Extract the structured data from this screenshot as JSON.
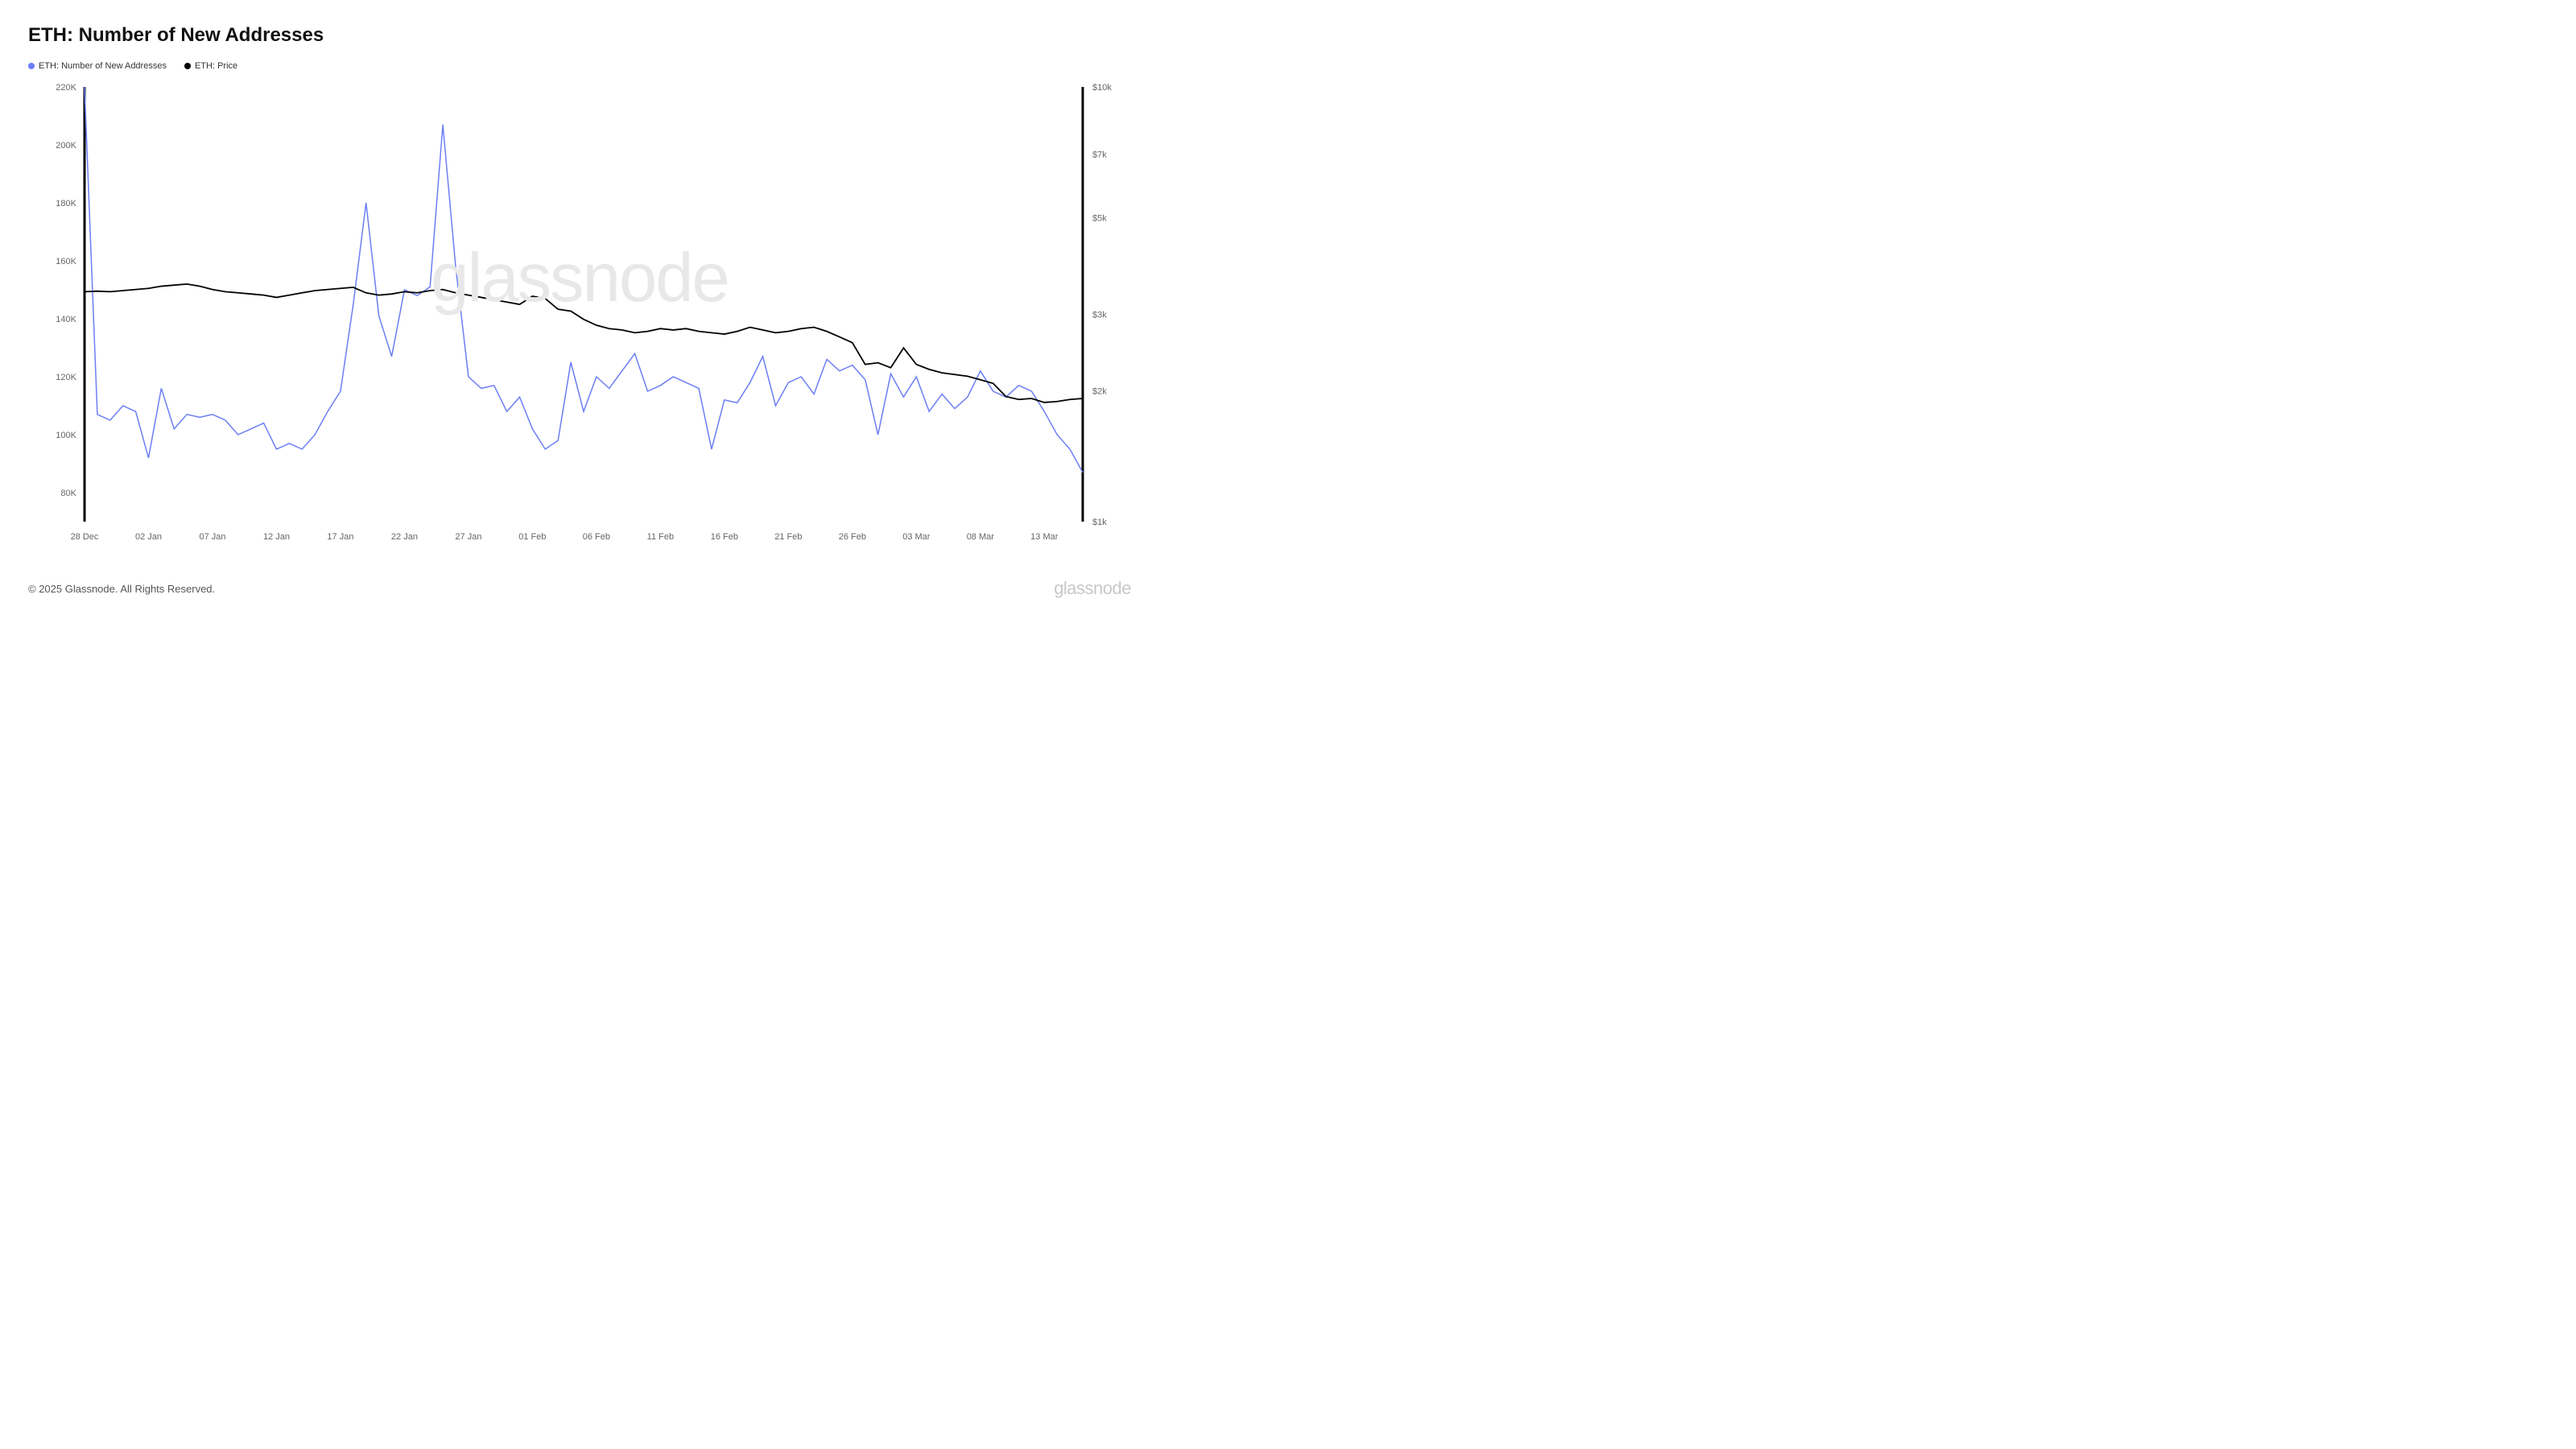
{
  "title": "ETH: Number of New Addresses",
  "legend": {
    "series1": {
      "label": "ETH: Number of New Addresses",
      "color": "#6b7ef5"
    },
    "series2": {
      "label": "ETH: Price",
      "color": "#000000"
    }
  },
  "watermark": "glassnode",
  "copyright": "© 2025 Glassnode. All Rights Reserved.",
  "brand": "glassnode",
  "chart": {
    "type": "line-dual-axis",
    "background_color": "#ffffff",
    "grid_color": "#eeeeee",
    "axis_color": "#000000",
    "axis_width_left": 3,
    "axis_width_right": 3,
    "y_left": {
      "min": 70000,
      "max": 220000,
      "ticks": [
        80000,
        100000,
        120000,
        140000,
        160000,
        180000,
        200000,
        220000
      ],
      "tick_labels": [
        "80K",
        "100K",
        "120K",
        "140K",
        "160K",
        "180K",
        "200K",
        "220K"
      ],
      "label_fontsize": 11,
      "label_color": "#666666"
    },
    "y_right": {
      "scale": "log",
      "min": 1000,
      "max": 10000,
      "ticks": [
        1000,
        2000,
        3000,
        5000,
        7000,
        10000
      ],
      "tick_labels": [
        "$1k",
        "$2k",
        "$3k",
        "$5k",
        "$7k",
        "$10k"
      ],
      "label_fontsize": 11,
      "label_color": "#666666"
    },
    "x": {
      "ticks": [
        0,
        5,
        10,
        15,
        20,
        25,
        30,
        35,
        40,
        45,
        50,
        55,
        60,
        65,
        70,
        75
      ],
      "tick_labels": [
        "28 Dec",
        "02 Jan",
        "07 Jan",
        "12 Jan",
        "17 Jan",
        "22 Jan",
        "27 Jan",
        "01 Feb",
        "06 Feb",
        "11 Feb",
        "16 Feb",
        "21 Feb",
        "26 Feb",
        "03 Mar",
        "08 Mar",
        "13 Mar"
      ],
      "label_fontsize": 11,
      "label_color": "#666666"
    },
    "series_addresses": {
      "color": "#6b7ef5",
      "line_width": 1.5,
      "values": [
        220000,
        107000,
        105000,
        110000,
        108000,
        92000,
        116000,
        102000,
        107000,
        106000,
        107000,
        105000,
        100000,
        102000,
        104000,
        95000,
        97000,
        95000,
        100000,
        108000,
        115000,
        145000,
        180000,
        141000,
        127000,
        150000,
        148000,
        151000,
        207000,
        158000,
        120000,
        116000,
        117000,
        108000,
        113000,
        102000,
        95000,
        98000,
        125000,
        108000,
        120000,
        116000,
        122000,
        128000,
        115000,
        117000,
        120000,
        118000,
        116000,
        95000,
        112000,
        111000,
        118000,
        127000,
        110000,
        118000,
        120000,
        114000,
        126000,
        122000,
        124000,
        119000,
        100000,
        121000,
        113000,
        120000,
        108000,
        114000,
        109000,
        113000,
        122000,
        115000,
        113000,
        117000,
        115000,
        108000,
        100000,
        95000,
        87000
      ]
    },
    "series_price": {
      "color": "#000000",
      "line_width": 1.8,
      "values": [
        3380,
        3390,
        3380,
        3400,
        3420,
        3440,
        3480,
        3500,
        3520,
        3480,
        3420,
        3380,
        3360,
        3340,
        3320,
        3280,
        3320,
        3360,
        3400,
        3420,
        3440,
        3460,
        3360,
        3320,
        3340,
        3380,
        3360,
        3400,
        3420,
        3360,
        3320,
        3280,
        3240,
        3200,
        3160,
        3300,
        3260,
        3080,
        3050,
        2920,
        2830,
        2780,
        2760,
        2720,
        2740,
        2780,
        2760,
        2780,
        2740,
        2720,
        2700,
        2740,
        2800,
        2760,
        2720,
        2740,
        2780,
        2800,
        2740,
        2660,
        2580,
        2300,
        2320,
        2260,
        2510,
        2300,
        2240,
        2200,
        2180,
        2160,
        2120,
        2080,
        1940,
        1910,
        1920,
        1880,
        1890,
        1910,
        1920
      ]
    }
  }
}
